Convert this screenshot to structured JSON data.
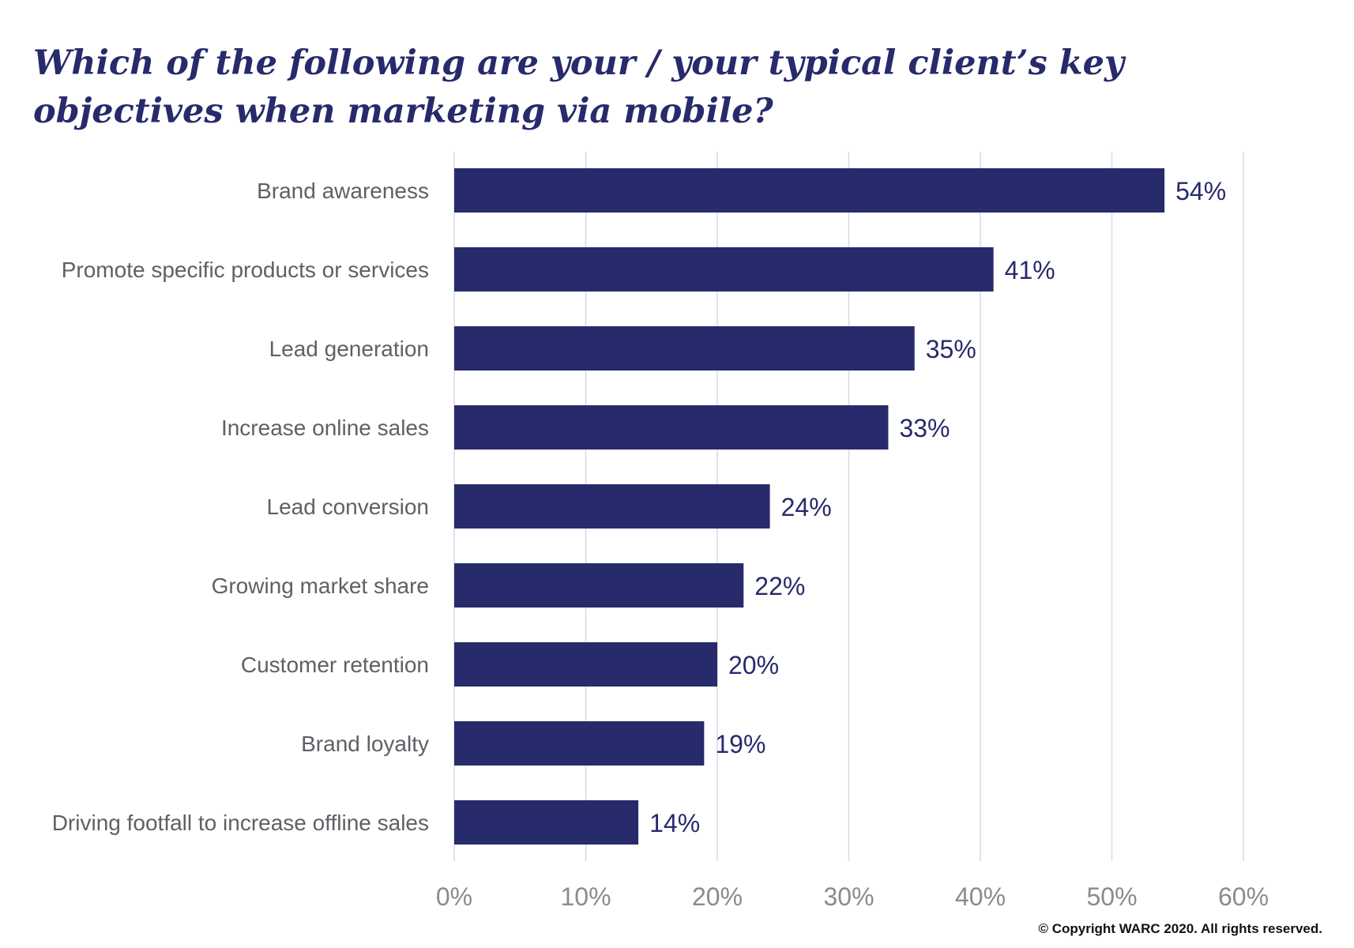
{
  "chart_data": {
    "type": "bar",
    "orientation": "horizontal",
    "title": "Which of the following are your / your typical client’s key objectives when marketing via mobile?",
    "categories": [
      "Brand awareness",
      "Promote specific products or services",
      "Lead generation",
      "Increase online sales",
      "Lead conversion",
      "Growing market share",
      "Customer retention",
      "Brand loyalty",
      "Driving footfall to increase offline sales"
    ],
    "values": [
      54,
      41,
      35,
      33,
      24,
      22,
      20,
      19,
      14
    ],
    "value_labels": [
      "54%",
      "41%",
      "35%",
      "33%",
      "24%",
      "22%",
      "20%",
      "19%",
      "14%"
    ],
    "xlim": [
      0,
      60
    ],
    "xticks": [
      0,
      10,
      20,
      30,
      40,
      50,
      60
    ],
    "xtick_labels": [
      "0%",
      "10%",
      "20%",
      "30%",
      "40%",
      "50%",
      "60%"
    ],
    "grid": true,
    "bar_color": "#272a6b",
    "title_color": "#272a6b"
  },
  "footer": {
    "copyright": "© Copyright WARC 2020. All rights reserved."
  }
}
